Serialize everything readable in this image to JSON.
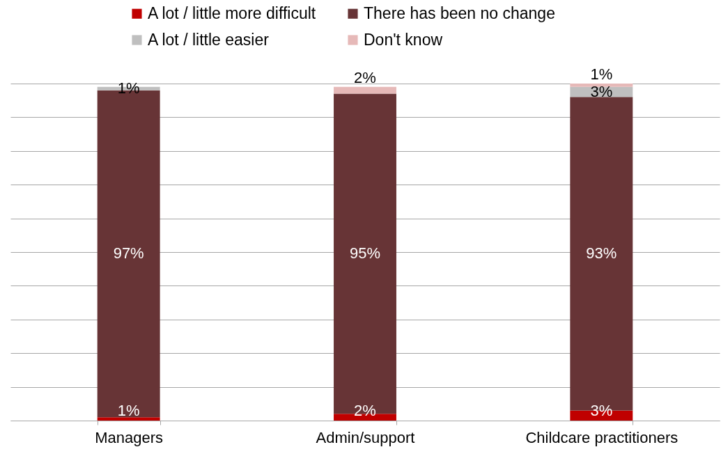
{
  "chart_data": {
    "type": "bar",
    "stacked": true,
    "categories": [
      "Managers",
      "Admin/support",
      "Childcare practitioners"
    ],
    "series": [
      {
        "name": "A lot / little more difficult",
        "color": "#c00000",
        "values": [
          1,
          2,
          3
        ],
        "value_labels": [
          "1%",
          "2%",
          "3%"
        ]
      },
      {
        "name": "There has been no change",
        "color": "#673436",
        "values": [
          97,
          95,
          93
        ],
        "value_labels": [
          "97%",
          "95%",
          "93%"
        ]
      },
      {
        "name": "A lot / little easier",
        "color": "#bfbfbf",
        "values": [
          1,
          0,
          3
        ],
        "value_labels": [
          "1%",
          null,
          "3%"
        ]
      },
      {
        "name": "Don't know",
        "color": "#e6b9b8",
        "values": [
          0,
          2,
          1
        ],
        "value_labels": [
          null,
          "2%",
          "1%"
        ]
      }
    ],
    "ylim": [
      0,
      100
    ],
    "yticks": [
      {
        "value": 0,
        "label": null
      },
      {
        "value": 10,
        "label": null
      },
      {
        "value": 20,
        "label": null
      },
      {
        "value": 30,
        "label": null
      },
      {
        "value": 40,
        "label": null
      },
      {
        "value": 50,
        "label": null
      },
      {
        "value": 60,
        "label": null
      },
      {
        "value": 70,
        "label": null
      },
      {
        "value": 80,
        "label": null
      },
      {
        "value": 90,
        "label": null
      },
      {
        "value": 100,
        "label": null
      }
    ],
    "tick_labels": "x",
    "grid": "y",
    "legend": "top"
  }
}
